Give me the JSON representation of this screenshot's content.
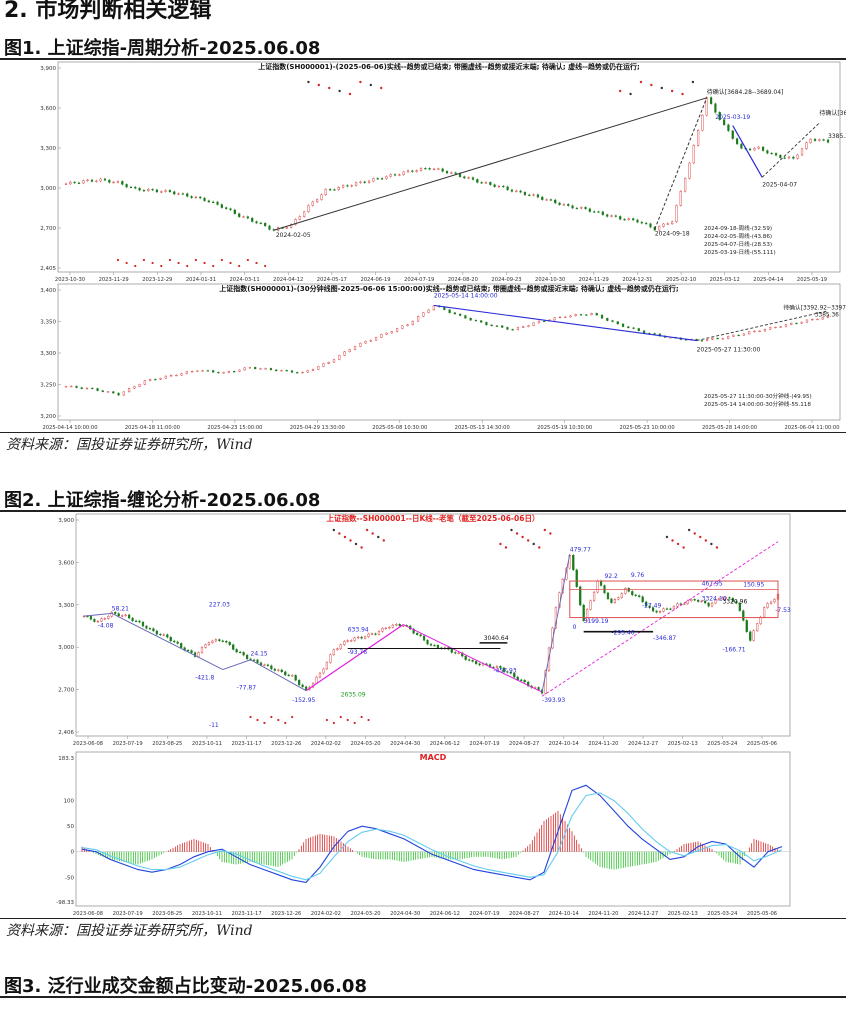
{
  "section_heading": "2. 市场判断相关逻辑",
  "fig1": {
    "title": "图1. 上证综指-周期分析-2025.06.08",
    "source": "资料来源：国投证券证券研究所，Wind"
  },
  "fig2": {
    "title": "图2. 上证综指-缠论分析-2025.06.08",
    "source": "资料来源：国投证券证券研究所，Wind"
  },
  "fig3": {
    "title": "图3. 泛行业成交金额占比变动-2025.06.08"
  },
  "colors": {
    "up": "#d62728",
    "down": "#1a7a1a",
    "blue": "#2a2ad8",
    "magenta": "#e020e0",
    "box": "#e05050"
  },
  "chart_data": [
    {
      "type": "line",
      "title": "上证指数(SH000001)-(2025-06-06)实线--趋势或已结束;  带圈虚线--趋势或接近末端;  待确认;  虚线--趋势或仍在运行;",
      "yticks": [
        "3,900",
        "3,600",
        "3,300",
        "3,000",
        "2,700",
        "2,405"
      ],
      "ylim": [
        2405,
        3900
      ],
      "xticks": [
        "2023-10-30",
        "2023-11-29",
        "2023-12-29",
        "2024-01-31",
        "2024-03-11",
        "2024-04-12",
        "2024-05-17",
        "2024-06-19",
        "2024-07-19",
        "2024-08-20",
        "2024-09-23",
        "2024-10-30",
        "2024-11-29",
        "2024-12-31",
        "2025-02-10",
        "2025-03-12",
        "2025-04-14",
        "2025-05-19"
      ],
      "series": [
        {
          "x": [
            0,
            1,
            2,
            3,
            4,
            5,
            6,
            7,
            8,
            9,
            10,
            11,
            12,
            13,
            14,
            15,
            16,
            17,
            18,
            19,
            20,
            21,
            22,
            23,
            24,
            25,
            26,
            27,
            28,
            29,
            30,
            31,
            32,
            33,
            34,
            35,
            36,
            37,
            38,
            39,
            40,
            41,
            42,
            43,
            44
          ],
          "values": [
            3040,
            3060,
            3070,
            3050,
            3000,
            2990,
            2980,
            2950,
            2920,
            2870,
            2800,
            2750,
            2690,
            2730,
            2870,
            2990,
            3020,
            3050,
            3080,
            3110,
            3140,
            3160,
            3130,
            3090,
            3050,
            3020,
            2980,
            2950,
            2910,
            2870,
            2850,
            2810,
            2780,
            2760,
            2700,
            2760,
            3200,
            3690,
            3480,
            3300,
            3310,
            3250,
            3230,
            3380,
            3360
          ]
        }
      ],
      "annotations": [
        "2024-02-05",
        "2024-09-18",
        "2025-03-19",
        "2025-04-07",
        "待确认[3684.28--3689.04]",
        "待确认[3605.16--3615.45]",
        "3385.36",
        "2024-09-18-周线-(32.59)",
        "2024-02-05-周线-(43.86)",
        "2025-04-07-日线-(28.53)",
        "2025-03-19-日线-(55.111)"
      ]
    },
    {
      "type": "line",
      "title": "上证指数(SH000001)-(30分钟线图-2025-06-06 15:00:00)实线--趋势或已结束;  带圈虚线--趋势或接近末端;  待确认;  虚线--趋势或仍在运行;",
      "yticks": [
        "3,400",
        "3,350",
        "3,300",
        "3,250",
        "3,200"
      ],
      "ylim": [
        3200,
        3430
      ],
      "xticks": [
        "2025-04-14 10:00:00",
        "2025-04-18 11:00:00",
        "2025-04-23 15:00:00",
        "2025-04-29 13:30:00",
        "2025-05-08 10:30:00",
        "2025-05-13 14:30:00",
        "2025-05-19 10:30:00",
        "2025-05-23 10:00:00",
        "2025-05-28 14:00:00",
        "2025-06-04 11:00:00"
      ],
      "series": [
        {
          "x": [
            0,
            1,
            2,
            3,
            4,
            5,
            6,
            7,
            8,
            9,
            10,
            11,
            12,
            13,
            14,
            15,
            16,
            17,
            18,
            19,
            20,
            21,
            22,
            23,
            24,
            25,
            26,
            27,
            28,
            29
          ],
          "values": [
            3255,
            3250,
            3240,
            3265,
            3275,
            3285,
            3280,
            3290,
            3285,
            3280,
            3300,
            3330,
            3350,
            3370,
            3405,
            3385,
            3370,
            3360,
            3375,
            3385,
            3390,
            3370,
            3355,
            3345,
            3340,
            3345,
            3355,
            3365,
            3375,
            3385
          ]
        }
      ],
      "annotations": [
        "2025-05-14 14:00:00",
        "2025-05-27 11:30:00",
        "待确认[3392.92--3397.32]",
        "3385.36",
        "2025-05-27 11:30:00-30分钟线-(49.95)",
        "2025-05-14 14:00:00-30分钟线-55.118"
      ]
    },
    {
      "type": "line",
      "title": "上证指数--SH000001--日K线--老笔（截至2025-06-06日）",
      "yticks": [
        "3,900",
        "3,600",
        "3,300",
        "3,000",
        "2,700",
        "2,406"
      ],
      "ylim": [
        2406,
        3900
      ],
      "xticks": [
        "2023-06-08",
        "2023-07-19",
        "2023-08-25",
        "2023-10-11",
        "2023-11-17",
        "2023-12-26",
        "2024-02-02",
        "2024-03-20",
        "2024-04-30",
        "2024-06-12",
        "2024-07-19",
        "2024-08-27",
        "2024-10-14",
        "2024-11-20",
        "2024-12-27",
        "2025-02-13",
        "2025-03-24",
        "2025-05-06"
      ],
      "series": [
        {
          "x": [
            0,
            1,
            2,
            3,
            4,
            5,
            6,
            7,
            8,
            9,
            10,
            11,
            12,
            13,
            14,
            15,
            16,
            17,
            18,
            19,
            20,
            21,
            22,
            23,
            24,
            25,
            26,
            27,
            28,
            29,
            30,
            31,
            32,
            33,
            34,
            35,
            36,
            37,
            38,
            39,
            40,
            41,
            42,
            43,
            44,
            45,
            46,
            47,
            48,
            49,
            50
          ],
          "values": [
            3230,
            3190,
            3250,
            3230,
            3180,
            3120,
            3080,
            3010,
            2950,
            3050,
            3060,
            2980,
            2920,
            2880,
            2840,
            2800,
            2700,
            2820,
            2990,
            3060,
            3080,
            3110,
            3160,
            3170,
            3100,
            3020,
            3000,
            2960,
            2900,
            2880,
            2860,
            2800,
            2740,
            2690,
            3300,
            3670,
            3200,
            3480,
            3320,
            3420,
            3360,
            3260,
            3280,
            3320,
            3350,
            3310,
            3370,
            3330,
            3060,
            3290,
            3380
          ]
        }
      ],
      "annotations": [
        "-4.08",
        "58.21",
        "-421.8",
        "227.03",
        "24.15",
        "-77.87",
        "-152.95",
        "633.94",
        "-93.76",
        "3040.64",
        "-457.93",
        "-393.93",
        "479.77",
        "0",
        "3199.19",
        "92.2",
        "-295.46",
        "9.76",
        "-27.49",
        "-346.87",
        "467.95",
        "3324.16",
        "3320.96",
        "150.95",
        "-7.53",
        "-166.71",
        "2635.09",
        "-11"
      ]
    },
    {
      "type": "line",
      "title": "MACD",
      "yticks": [
        "183.3",
        "100",
        "50",
        "0",
        "-50",
        "-98.33"
      ],
      "ylim": [
        -98.33,
        183.3
      ],
      "xticks": [
        "2023-06-08",
        "2023-07-19",
        "2023-08-25",
        "2023-10-11",
        "2023-11-17",
        "2023-12-26",
        "2024-02-02",
        "2024-03-20",
        "2024-04-30",
        "2024-06-12",
        "2024-07-19",
        "2024-08-27",
        "2024-10-14",
        "2024-11-20",
        "2024-12-27",
        "2025-02-13",
        "2025-03-24",
        "2025-05-06"
      ],
      "series": [
        {
          "name": "",
          "x": [
            0,
            1,
            2,
            3,
            4,
            5,
            6,
            7,
            8,
            9,
            10,
            11,
            12,
            13,
            14,
            15,
            16,
            17,
            18,
            19,
            20,
            21,
            22,
            23,
            24,
            25,
            26,
            27,
            28,
            29,
            30,
            31,
            32,
            33,
            34,
            35,
            36,
            37,
            38,
            39,
            40,
            41,
            42,
            43,
            44,
            45,
            46,
            47,
            48,
            49,
            50
          ],
          "values": [
            5,
            0,
            -15,
            -25,
            -35,
            -40,
            -35,
            -25,
            -10,
            0,
            5,
            -10,
            -25,
            -35,
            -45,
            -55,
            -60,
            -30,
            10,
            40,
            50,
            45,
            35,
            25,
            10,
            -5,
            -15,
            -25,
            -35,
            -40,
            -45,
            -50,
            -55,
            -40,
            40,
            120,
            130,
            110,
            80,
            50,
            25,
            5,
            -15,
            -10,
            10,
            20,
            15,
            -10,
            -30,
            0,
            10
          ]
        },
        {
          "name": "",
          "x": [
            0,
            1,
            2,
            3,
            4,
            5,
            6,
            7,
            8,
            9,
            10,
            11,
            12,
            13,
            14,
            15,
            16,
            17,
            18,
            19,
            20,
            21,
            22,
            23,
            24,
            25,
            26,
            27,
            28,
            29,
            30,
            31,
            32,
            33,
            34,
            35,
            36,
            37,
            38,
            39,
            40,
            41,
            42,
            43,
            44,
            45,
            46,
            47,
            48,
            49,
            50
          ],
          "values": [
            8,
            4,
            -8,
            -18,
            -28,
            -35,
            -35,
            -30,
            -18,
            -6,
            2,
            -4,
            -16,
            -28,
            -38,
            -48,
            -55,
            -42,
            -10,
            20,
            38,
            44,
            40,
            32,
            18,
            4,
            -8,
            -18,
            -28,
            -35,
            -40,
            -45,
            -50,
            -45,
            0,
            70,
            110,
            115,
            100,
            75,
            45,
            20,
            0,
            -8,
            2,
            12,
            14,
            2,
            -18,
            -8,
            4
          ]
        }
      ],
      "hist": [
        10,
        -5,
        -15,
        -20,
        -25,
        -15,
        0,
        15,
        25,
        15,
        -20,
        -25,
        -20,
        -25,
        -30,
        -15,
        25,
        35,
        30,
        10,
        -10,
        -15,
        -15,
        -20,
        -15,
        -10,
        -15,
        -15,
        -10,
        -10,
        -15,
        -10,
        15,
        60,
        80,
        40,
        -10,
        -30,
        -35,
        -30,
        -25,
        -20,
        -5,
        15,
        20,
        5,
        -20,
        -25,
        25,
        15,
        0
      ]
    }
  ]
}
